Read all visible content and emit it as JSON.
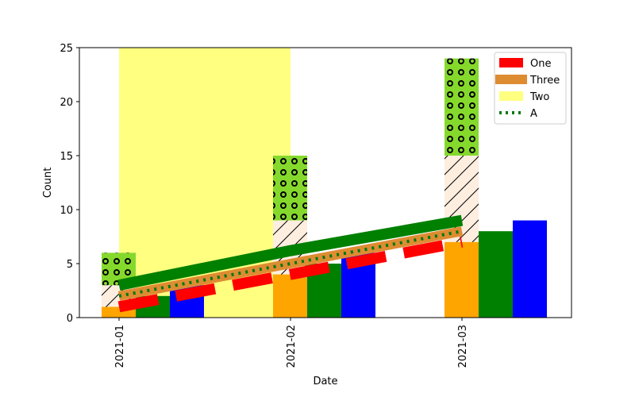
{
  "chart_data": {
    "type": "bar",
    "xlabel": "Date",
    "ylabel": "Count",
    "x_ticks": [
      "2021-01",
      "2021-02",
      "2021-03"
    ],
    "y_ticks": [
      "0",
      "5",
      "10",
      "15",
      "20",
      "25"
    ],
    "ylim": [
      0,
      25
    ],
    "grid": false,
    "legend_placement": "top-right",
    "background_band": {
      "name": "Two",
      "x_start": "2021-01",
      "x_end": "2021-02",
      "color": "#ffff80"
    },
    "grouped_bars": {
      "series": [
        {
          "color": "#ffa500",
          "values": [
            1,
            4,
            7
          ]
        },
        {
          "color": "#008000",
          "values": [
            2,
            5,
            8
          ]
        },
        {
          "color": "#0000ff",
          "values": [
            3,
            6,
            9
          ]
        }
      ]
    },
    "stacked_bars": {
      "series": [
        {
          "color": "#ffa500",
          "hatch": "none",
          "values": [
            1,
            4,
            7
          ]
        },
        {
          "color": "#fdeee0",
          "hatch": "diagonal",
          "values": [
            2,
            5,
            8
          ]
        },
        {
          "color": "#85d92c",
          "hatch": "circles",
          "values": [
            3,
            6,
            9
          ]
        }
      ]
    },
    "lines": [
      {
        "color": "#008000",
        "style": "solid-thick",
        "values": [
          3,
          6.2,
          9
        ]
      },
      {
        "name": "Three",
        "color": "#de8c32",
        "style": "solid",
        "values": [
          2,
          5,
          8
        ]
      },
      {
        "name": "A",
        "color": "#00780f",
        "style": "dotted",
        "values": [
          2,
          5,
          8
        ]
      },
      {
        "name": "One",
        "color": "#ff0000",
        "style": "dashed-thick",
        "values": [
          1,
          4,
          7
        ]
      }
    ],
    "legend": [
      {
        "label": "One",
        "color": "#ff0000",
        "kind": "patch"
      },
      {
        "label": "Three",
        "color": "#de8c32",
        "kind": "thick-line"
      },
      {
        "label": "Two",
        "color": "#ffff80",
        "kind": "patch"
      },
      {
        "label": "A",
        "color": "#00780f",
        "kind": "dotted-line"
      }
    ]
  }
}
